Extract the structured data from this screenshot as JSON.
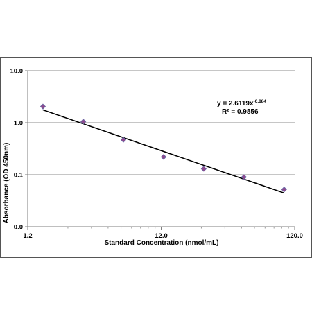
{
  "chart_data": {
    "type": "scatter",
    "title": "",
    "xlabel": "Standard Concentration (nmol/mL)",
    "ylabel": "Absorbance (OD 450nm)",
    "x_scale": "log",
    "y_scale": "log",
    "xlim": [
      1.2,
      120.0
    ],
    "ylim": [
      0.01,
      10.0
    ],
    "x_tick_values": [
      1.2,
      12.0,
      120.0
    ],
    "x_tick_labels": [
      "1.2",
      "12.0",
      "120.0"
    ],
    "y_tick_values": [
      0.01,
      0.1,
      1.0,
      10.0
    ],
    "y_tick_labels": [
      "0.0",
      "0.1",
      "1.0",
      "10.0"
    ],
    "grid": "horizontal major",
    "series": [
      {
        "x": [
          1.56,
          3.13,
          6.25,
          12.5,
          25,
          50,
          100
        ],
        "y": [
          2.05,
          1.05,
          0.47,
          0.22,
          0.13,
          0.09,
          0.052
        ]
      }
    ],
    "trendline": {
      "type": "power",
      "coef": 2.6119,
      "exponent": -0.884,
      "equation_base": "y = 2.6119x",
      "equation_exp": "-0.884",
      "r2_label": "R² = 0.9856"
    },
    "marker_color": "#8e4a8e",
    "line_color": "#000000"
  }
}
